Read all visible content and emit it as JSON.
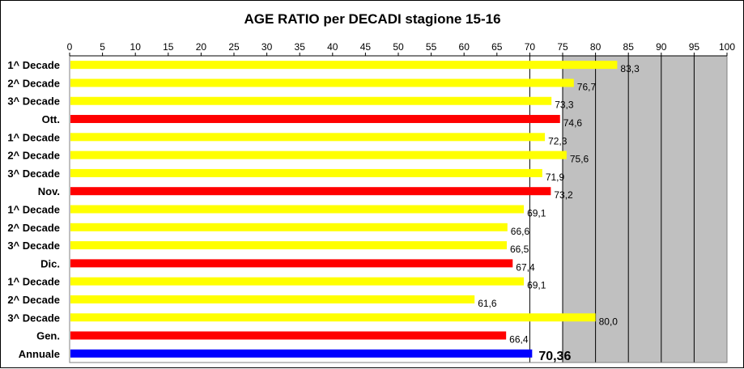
{
  "chart_data": {
    "type": "bar",
    "orientation": "horizontal",
    "title": "AGE RATIO per DECADI stagione 15-16",
    "xlim": [
      0,
      100
    ],
    "x_ticks": [
      0,
      5,
      10,
      15,
      20,
      25,
      30,
      35,
      40,
      45,
      50,
      55,
      60,
      65,
      70,
      75,
      80,
      85,
      90,
      95,
      100
    ],
    "x_axis_position": "top",
    "grid": "vertical",
    "plot_background": "#c0c0c0",
    "categories": [
      "1^ Decade",
      "2^ Decade",
      "3^ Decade",
      "Ott.",
      "1^ Decade",
      "2^ Decade",
      "3^ Decade",
      "Nov.",
      "1^ Decade",
      "2^ Decade",
      "3^ Decade",
      "Dic.",
      "1^ Decade",
      "2^ Decade",
      "3^ Decade",
      "Gen.",
      "Annuale"
    ],
    "values": [
      83.3,
      76.7,
      73.3,
      74.6,
      72.3,
      75.6,
      71.9,
      73.2,
      69.1,
      66.6,
      66.5,
      67.4,
      69.1,
      61.6,
      80.0,
      66.4,
      70.36
    ],
    "labels": [
      "83,3",
      "76,7",
      "73,3",
      "74,6",
      "72,3",
      "75,6",
      "71,9",
      "73,2",
      "69,1",
      "66,6",
      "66,5",
      "67,4",
      "69,1",
      "61,6",
      "80,0",
      "66,4",
      "70,36"
    ],
    "kinds": [
      "decade",
      "decade",
      "decade",
      "month",
      "decade",
      "decade",
      "decade",
      "month",
      "decade",
      "decade",
      "decade",
      "month",
      "decade",
      "decade",
      "decade",
      "month",
      "annual"
    ],
    "colors": {
      "decade": "#ffff00",
      "month": "#ff0000",
      "annual": "#0000ff",
      "grid": "#000000"
    }
  }
}
